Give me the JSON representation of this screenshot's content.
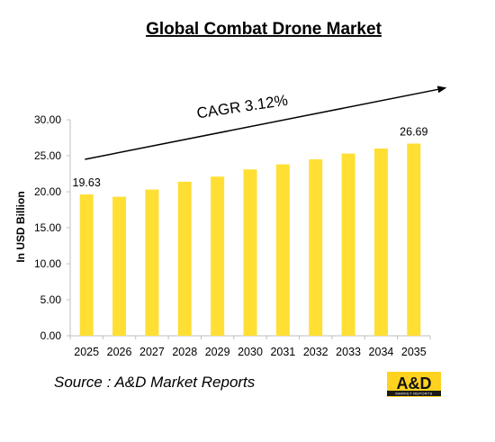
{
  "chart_data": {
    "type": "bar",
    "title": "Global Combat Drone Market",
    "ylabel": "In USD Billion",
    "xlabel": "",
    "categories": [
      "2025",
      "2026",
      "2027",
      "2028",
      "2029",
      "2030",
      "2031",
      "2032",
      "2033",
      "2034",
      "2035"
    ],
    "values": [
      19.63,
      19.3,
      20.3,
      21.4,
      22.1,
      23.1,
      23.8,
      24.5,
      25.3,
      26.0,
      26.69
    ],
    "data_labels": [
      {
        "index": 0,
        "text": "19.63"
      },
      {
        "index": 10,
        "text": "26.69"
      }
    ],
    "ylim": [
      0,
      30
    ],
    "yticks": [
      "0.00",
      "5.00",
      "10.00",
      "15.00",
      "20.00",
      "25.00",
      "30.00"
    ],
    "bar_color": "#FFDF33",
    "grid": false,
    "legend": "none",
    "annotation": {
      "text": "CAGR 3.12%",
      "arrow": {
        "from": {
          "x": "2025",
          "y": 24.5
        },
        "to": {
          "x": "2035",
          "y": 34.4
        }
      }
    }
  },
  "footer": {
    "source": "Source : A&D Market Reports",
    "logo_text": "A&D",
    "logo_subtext": "MARKET REPORTS"
  },
  "colors": {
    "bar": "#FFDF33",
    "logo_bg": "#FFD21F",
    "logo_band": "#1a1a1a",
    "axis": "#bfbfbf"
  }
}
